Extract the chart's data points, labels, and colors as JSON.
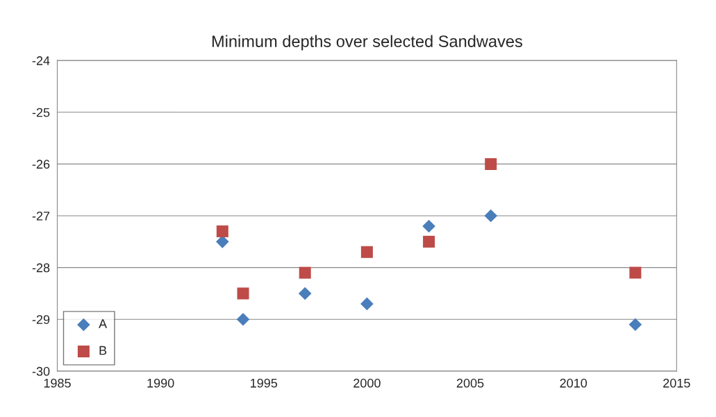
{
  "chart_data": {
    "type": "scatter",
    "title": "Minimum depths over selected Sandwaves",
    "series": [
      {
        "name": "A",
        "color": "#4a7ebb",
        "marker": "diamond",
        "x": [
          1993,
          1994,
          1997,
          2000,
          2003,
          2006,
          2013
        ],
        "values": [
          -27.5,
          -29.0,
          -28.5,
          -28.7,
          -27.2,
          -27.0,
          -29.1
        ]
      },
      {
        "name": "B",
        "color": "#be4b48",
        "marker": "square",
        "x": [
          1993,
          1994,
          1997,
          2000,
          2003,
          2006,
          2013
        ],
        "values": [
          -27.3,
          -28.5,
          -28.1,
          -27.7,
          -27.5,
          -26.0,
          -28.1
        ]
      }
    ],
    "xlim": [
      1985,
      2015
    ],
    "xticks": [
      1985,
      1990,
      1995,
      2000,
      2005,
      2010,
      2015
    ],
    "ylim": [
      -30,
      -24
    ],
    "yticks": [
      -30,
      -29,
      -28,
      -27,
      -26,
      -25,
      -24
    ],
    "grid": "y",
    "legend": "bottom left"
  }
}
